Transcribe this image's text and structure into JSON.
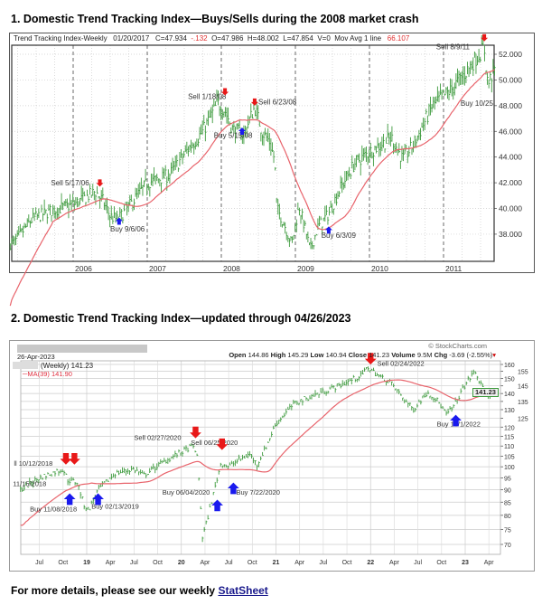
{
  "section1": {
    "title": "1. Domestic Trend Tracking Index—Buys/Sells during the 2008 market crash"
  },
  "section2": {
    "title": "2. Domestic Trend Tracking Index—updated through 04/26/2023"
  },
  "chart1_header": {
    "name": "Trend Tracking Index-Weekly",
    "date": "01/20/2017",
    "close": "C=47.934",
    "change": "-.132",
    "open": "O=47.986",
    "high": "H=48.002",
    "low": "L=47.854",
    "volume": "V=0",
    "ma_label": "Mov Avg 1 line",
    "ma_value": "66.107"
  },
  "chart2_header": {
    "date": "26-Apr-2023",
    "watermark": "© StockCharts.com",
    "open_label": "Open",
    "open": "144.86",
    "high_label": "High",
    "high": "145.29",
    "low_label": "Low",
    "low": "140.94",
    "close_label": "Close",
    "close": "141.23",
    "volume_label": "Volume",
    "volume": "9.5M",
    "chg_label": "Chg",
    "chg": "-3.69 (-2.55%)",
    "series_label": "(Weekly) 141.23",
    "ma_label": "MA(39) 141.90",
    "last_price": "141.23"
  },
  "footer": {
    "text": "For more details, please see our weekly ",
    "link": "StatSheet"
  },
  "colors": {
    "bars": "#3d9a3d",
    "ma": "#e8636b",
    "sell": "#e81818",
    "buy": "#1a1aee"
  },
  "chart_data": [
    {
      "type": "line",
      "title": "Trend Tracking Index-Weekly",
      "x_range": [
        2005.15,
        2011.7
      ],
      "ylim": [
        37,
        53
      ],
      "yticks": [
        38,
        40,
        42,
        44,
        46,
        48,
        50,
        52
      ],
      "xticks": [
        {
          "x": 2006,
          "label": "2006"
        },
        {
          "x": 2007,
          "label": "2007"
        },
        {
          "x": 2008,
          "label": "2008"
        },
        {
          "x": 2009,
          "label": "2009"
        },
        {
          "x": 2010,
          "label": "2010"
        },
        {
          "x": 2011,
          "label": "2011"
        }
      ],
      "ma_weeks": 30,
      "price_path": [
        [
          2005.2,
          37.3
        ],
        [
          2005.45,
          39.2
        ],
        [
          2005.7,
          39.8
        ],
        [
          2006.0,
          40.3
        ],
        [
          2006.3,
          41.3
        ],
        [
          2006.4,
          40.6
        ],
        [
          2006.5,
          39.4
        ],
        [
          2006.6,
          39.1
        ],
        [
          2006.8,
          40.5
        ],
        [
          2007.0,
          42.0
        ],
        [
          2007.3,
          42.6
        ],
        [
          2007.55,
          44.6
        ],
        [
          2007.75,
          46.0
        ],
        [
          2007.95,
          48.2
        ],
        [
          2008.05,
          47.6
        ],
        [
          2008.15,
          46.2
        ],
        [
          2008.3,
          45.7
        ],
        [
          2008.45,
          47.9
        ],
        [
          2008.55,
          46.0
        ],
        [
          2008.65,
          45.2
        ],
        [
          2008.72,
          43.8
        ],
        [
          2008.75,
          40.0
        ],
        [
          2008.85,
          38.8
        ],
        [
          2008.95,
          37.2
        ],
        [
          2009.05,
          40.2
        ],
        [
          2009.15,
          38.0
        ],
        [
          2009.2,
          36.7
        ],
        [
          2009.3,
          38.5
        ],
        [
          2009.45,
          39.6
        ],
        [
          2009.6,
          41.5
        ],
        [
          2009.8,
          43.5
        ],
        [
          2010.0,
          44.4
        ],
        [
          2010.3,
          45.5
        ],
        [
          2010.45,
          43.8
        ],
        [
          2010.6,
          45.0
        ],
        [
          2010.85,
          48.0
        ],
        [
          2011.1,
          49.2
        ],
        [
          2011.3,
          50.6
        ],
        [
          2011.45,
          51.8
        ],
        [
          2011.55,
          52.5
        ],
        [
          2011.6,
          49.6
        ],
        [
          2011.68,
          50.8
        ]
      ],
      "annotations": [
        {
          "text": "Sell 5/17/06",
          "tx": 2005.7,
          "ty": 41.8,
          "arrow": "sell",
          "ax": 2006.36,
          "ay": 41.7
        },
        {
          "text": "Buy 9/6/06",
          "tx": 2006.5,
          "ty": 38.2,
          "arrow": "buy",
          "ax": 2006.62,
          "ay": 39.3
        },
        {
          "text": "Sell 1/18/08",
          "tx": 2007.55,
          "ty": 48.5,
          "arrow": "sell",
          "ax": 2008.05,
          "ay": 48.8
        },
        {
          "text": "Sell 6/23/08",
          "tx": 2008.5,
          "ty": 48.1,
          "arrow": "sell",
          "ax": 2008.45,
          "ay": 48.0
        },
        {
          "text": "Buy 5/15/08",
          "tx": 2007.9,
          "ty": 45.5,
          "arrow": "buy",
          "ax": 2008.28,
          "ay": 46.3
        },
        {
          "text": "Buy 6/3/09",
          "tx": 2009.35,
          "ty": 37.7,
          "arrow": "buy",
          "ax": 2009.45,
          "ay": 38.6
        },
        {
          "text": "Sell 8/9/11",
          "tx": 2010.9,
          "ty": 52.4,
          "arrow": "sell",
          "ax": 2011.55,
          "ay": 53.0
        },
        {
          "text": "Buy 10/25",
          "tx": 2011.23,
          "ty": 48.0,
          "arrow": null
        }
      ]
    },
    {
      "type": "line",
      "title": "(Weekly) 141.23",
      "scale": "log",
      "x_range": [
        2018.3,
        2023.32
      ],
      "ylim": [
        65,
        162
      ],
      "yticks": [
        70,
        75,
        80,
        85,
        90,
        95,
        100,
        105,
        110,
        115,
        120,
        125,
        130,
        135,
        140,
        145,
        150,
        155,
        160
      ],
      "xticks": [
        {
          "x": 2018.5,
          "label": "Jul"
        },
        {
          "x": 2018.75,
          "label": "Oct"
        },
        {
          "x": 2019,
          "label": "19",
          "major": true
        },
        {
          "x": 2019.25,
          "label": "Apr"
        },
        {
          "x": 2019.5,
          "label": "Jul"
        },
        {
          "x": 2019.75,
          "label": "Oct"
        },
        {
          "x": 2020,
          "label": "20",
          "major": true
        },
        {
          "x": 2020.25,
          "label": "Apr"
        },
        {
          "x": 2020.5,
          "label": "Jul"
        },
        {
          "x": 2020.75,
          "label": "Oct"
        },
        {
          "x": 2021,
          "label": "21",
          "major": true
        },
        {
          "x": 2021.25,
          "label": "Apr"
        },
        {
          "x": 2021.5,
          "label": "Jul"
        },
        {
          "x": 2021.75,
          "label": "Oct"
        },
        {
          "x": 2022,
          "label": "22",
          "major": true
        },
        {
          "x": 2022.25,
          "label": "Apr"
        },
        {
          "x": 2022.5,
          "label": "Jul"
        },
        {
          "x": 2022.75,
          "label": "Oct"
        },
        {
          "x": 2023,
          "label": "23",
          "major": true
        },
        {
          "x": 2023.25,
          "label": "Apr"
        }
      ],
      "ma_weeks": 39,
      "price_path": [
        [
          2018.3,
          90
        ],
        [
          2018.5,
          95
        ],
        [
          2018.75,
          99
        ],
        [
          2018.8,
          94
        ],
        [
          2018.9,
          93
        ],
        [
          2018.97,
          84
        ],
        [
          2019.02,
          82
        ],
        [
          2019.12,
          90
        ],
        [
          2019.3,
          97
        ],
        [
          2019.5,
          99
        ],
        [
          2019.6,
          96
        ],
        [
          2019.8,
          102
        ],
        [
          2020.0,
          107
        ],
        [
          2020.12,
          110
        ],
        [
          2020.16,
          107
        ],
        [
          2020.19,
          92
        ],
        [
          2020.22,
          72
        ],
        [
          2020.27,
          78
        ],
        [
          2020.35,
          90
        ],
        [
          2020.42,
          102
        ],
        [
          2020.5,
          100
        ],
        [
          2020.6,
          103
        ],
        [
          2020.72,
          106
        ],
        [
          2020.8,
          101
        ],
        [
          2020.9,
          110
        ],
        [
          2021.0,
          122
        ],
        [
          2021.2,
          134
        ],
        [
          2021.45,
          140
        ],
        [
          2021.7,
          146
        ],
        [
          2021.9,
          152
        ],
        [
          2021.97,
          158
        ],
        [
          2022.1,
          151
        ],
        [
          2022.2,
          148
        ],
        [
          2022.33,
          138
        ],
        [
          2022.45,
          130
        ],
        [
          2022.6,
          141
        ],
        [
          2022.7,
          136
        ],
        [
          2022.8,
          127
        ],
        [
          2022.88,
          132
        ],
        [
          2023.0,
          146
        ],
        [
          2023.1,
          155
        ],
        [
          2023.17,
          145
        ],
        [
          2023.22,
          139
        ],
        [
          2023.32,
          141
        ]
      ],
      "annotations": [
        {
          "text": "ll 10/12/2018",
          "tx": 2018.23,
          "ty": 100.5,
          "arrow": "sell",
          "ax": 2018.78,
          "ay": 101
        },
        {
          "text": "",
          "tx": 0,
          "ty": 0,
          "arrow": "sell",
          "ax": 2018.87,
          "ay": 101
        },
        {
          "text": "11/15/2018",
          "tx": 2018.22,
          "ty": 91.5,
          "arrow": null
        },
        {
          "text": "Buy 11/08/2018",
          "tx": 2018.4,
          "ty": 81.5,
          "arrow": "buy",
          "ax": 2018.82,
          "ay": 88.5
        },
        {
          "text": "Buy 02/13/2019",
          "tx": 2019.05,
          "ty": 82.5,
          "arrow": "buy",
          "ax": 2019.12,
          "ay": 88.5
        },
        {
          "text": "Sell 02/27/2020",
          "tx": 2019.5,
          "ty": 113,
          "arrow": "sell",
          "ax": 2020.15,
          "ay": 114
        },
        {
          "text": "Sell 06/25/2020",
          "tx": 2020.1,
          "ty": 110.5,
          "arrow": "sell",
          "ax": 2020.43,
          "ay": 108
        },
        {
          "text": "Buy 06/04/2020",
          "tx": 2019.8,
          "ty": 88,
          "arrow": "buy",
          "ax": 2020.38,
          "ay": 86
        },
        {
          "text": "Buy 7/22/2020",
          "tx": 2020.58,
          "ty": 88,
          "arrow": "buy",
          "ax": 2020.55,
          "ay": 93
        },
        {
          "text": "Sell 02/24/2022",
          "tx": 2022.07,
          "ty": 159,
          "arrow": "sell",
          "ax": 2022.0,
          "ay": 160
        },
        {
          "text": "Buy 12/1/2022",
          "tx": 2022.7,
          "ty": 120.5,
          "arrow": "buy",
          "ax": 2022.9,
          "ay": 127
        }
      ]
    }
  ]
}
